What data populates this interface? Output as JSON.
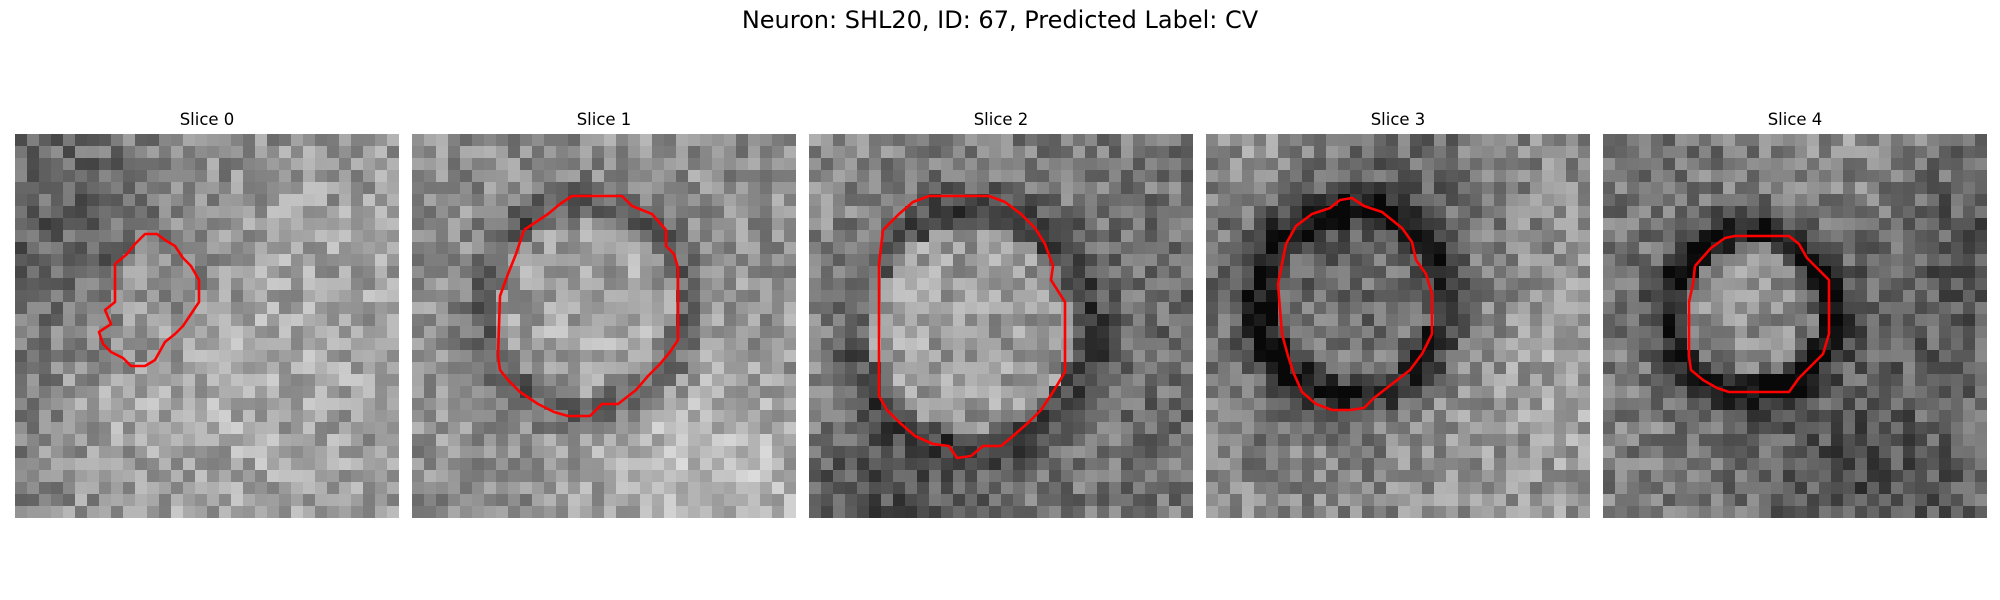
{
  "figure": {
    "title": "Neuron: SHL20, ID: 67, Predicted Label: CV"
  },
  "panels": [
    {
      "title": "Slice 0",
      "seed": 11,
      "center_brightness": 0.58,
      "ring_darkness": 0.05
    },
    {
      "title": "Slice 1",
      "seed": 23,
      "center_brightness": 0.66,
      "ring_darkness": 0.25
    },
    {
      "title": "Slice 2",
      "seed": 37,
      "center_brightness": 0.78,
      "ring_darkness": 0.18
    },
    {
      "title": "Slice 3",
      "seed": 41,
      "center_brightness": 0.52,
      "ring_darkness": 0.32
    },
    {
      "title": "Slice 4",
      "seed": 59,
      "center_brightness": 0.68,
      "ring_darkness": 0.4
    }
  ],
  "colors": {
    "contour": "#ff0000"
  }
}
